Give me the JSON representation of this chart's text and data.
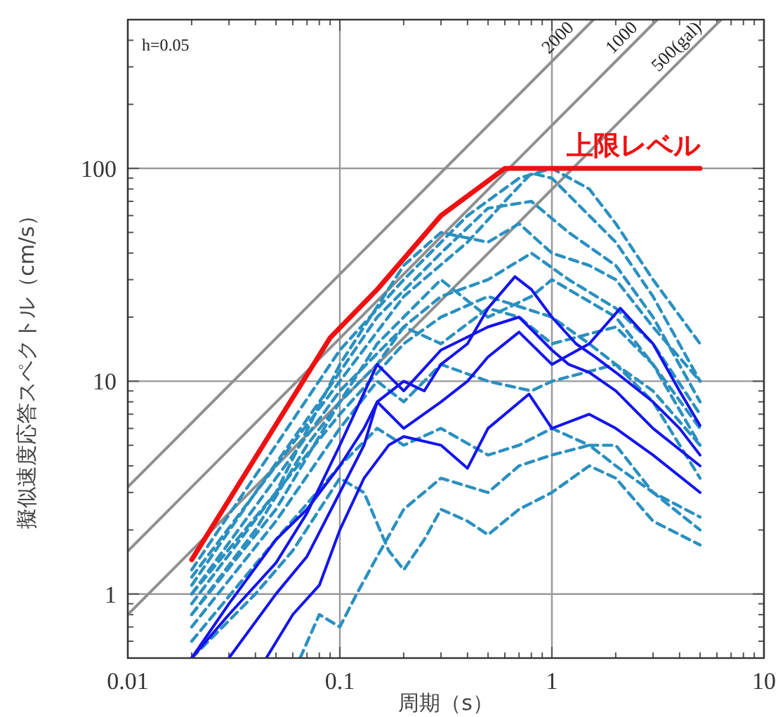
{
  "chart_data": {
    "type": "line",
    "xlabel": "周期（s）",
    "ylabel": "擬似速度応答スペクトル（cm/s）",
    "log": "xy",
    "xlim": [
      0.01,
      10
    ],
    "ylim": [
      0.5,
      500
    ],
    "xticks": [
      0.01,
      0.1,
      1,
      10
    ],
    "yticks": [
      1,
      10,
      100
    ],
    "grid": true,
    "marker": "none",
    "annotations": [
      "h=0.05"
    ],
    "series": [
      {
        "name": "2000",
        "color": "#909090",
        "x": [
          0.01,
          1.57
        ],
        "values": [
          3.18,
          500
        ]
      },
      {
        "name": "1000",
        "color": "#909090",
        "x": [
          0.01,
          3.14
        ],
        "values": [
          1.59,
          500
        ]
      },
      {
        "name": "500(gal)",
        "color": "#909090",
        "x": [
          0.01,
          6.28
        ],
        "values": [
          0.8,
          500
        ]
      },
      {
        "color": "#2a90c0",
        "line_style": "dashed",
        "x": [
          0.02,
          0.05,
          0.1,
          0.2,
          0.4,
          0.7,
          1,
          1.5,
          2,
          3,
          5
        ],
        "values": [
          1.3,
          5,
          14,
          30,
          60,
          90,
          100,
          80,
          55,
          30,
          15
        ]
      },
      {
        "color": "#2a90c0",
        "line_style": "dashed",
        "x": [
          0.02,
          0.05,
          0.1,
          0.2,
          0.4,
          0.6,
          0.8,
          1,
          1.5,
          2,
          3,
          5
        ],
        "values": [
          1.2,
          4,
          10,
          25,
          45,
          70,
          95,
          90,
          60,
          45,
          25,
          10
        ]
      },
      {
        "color": "#2a90c0",
        "line_style": "dashed",
        "x": [
          0.02,
          0.04,
          0.08,
          0.15,
          0.3,
          0.5,
          0.8,
          1.2,
          2,
          3,
          5
        ],
        "values": [
          1.1,
          3,
          8,
          20,
          40,
          65,
          70,
          50,
          35,
          20,
          8
        ]
      },
      {
        "color": "#2a90c0",
        "line_style": "dashed",
        "x": [
          0.02,
          0.05,
          0.1,
          0.2,
          0.3,
          0.5,
          0.8,
          1.2,
          2,
          3,
          5
        ],
        "values": [
          1,
          3.5,
          9,
          18,
          25,
          30,
          40,
          30,
          22,
          15,
          7
        ]
      },
      {
        "color": "#2a90c0",
        "line_style": "dashed",
        "x": [
          0.02,
          0.05,
          0.1,
          0.2,
          0.3,
          0.5,
          1,
          1.5,
          2,
          3,
          5
        ],
        "values": [
          0.9,
          3,
          7,
          15,
          20,
          25,
          20,
          15,
          12,
          9,
          5
        ]
      },
      {
        "color": "#2a90c0",
        "line_style": "dashed",
        "x": [
          0.02,
          0.04,
          0.07,
          0.1,
          0.15,
          0.2,
          0.3,
          0.5,
          0.7,
          1,
          2,
          3,
          5
        ],
        "values": [
          0.8,
          2,
          5,
          8,
          12,
          18,
          15,
          22,
          20,
          15,
          18,
          12,
          5
        ]
      },
      {
        "color": "#2a90c0",
        "line_style": "dashed",
        "x": [
          0.02,
          0.05,
          0.1,
          0.15,
          0.2,
          0.3,
          0.5,
          0.8,
          1,
          2,
          3,
          5
        ],
        "values": [
          0.7,
          2.2,
          6,
          10,
          8,
          12,
          10,
          9,
          10,
          12,
          8,
          3.5
        ]
      },
      {
        "color": "#2a90c0",
        "line_style": "dashed",
        "x": [
          0.02,
          0.05,
          0.1,
          0.15,
          0.2,
          0.3,
          0.5,
          0.7,
          1,
          1.5,
          2,
          3,
          5
        ],
        "values": [
          0.6,
          1.8,
          4,
          6,
          5,
          6,
          4.5,
          5,
          6,
          5,
          5,
          3,
          2
        ]
      },
      {
        "color": "#2a90c0",
        "line_style": "dashed",
        "x": [
          0.02,
          0.04,
          0.06,
          0.1,
          0.13,
          0.17,
          0.2,
          0.25,
          0.3,
          0.4,
          0.5,
          0.7,
          1,
          1.5,
          2,
          3,
          5
        ],
        "values": [
          0.5,
          1,
          1.6,
          3.5,
          3,
          1.6,
          1.3,
          1.8,
          2.5,
          2.2,
          1.9,
          2.5,
          3,
          4,
          3.5,
          2.2,
          1.7
        ]
      },
      {
        "color": "#2a90c0",
        "line_style": "dashed",
        "x": [
          0.065,
          0.08,
          0.1,
          0.12,
          0.15,
          0.2,
          0.3,
          0.5,
          0.7,
          1,
          1.5,
          2,
          3,
          5
        ],
        "values": [
          0.5,
          0.8,
          0.7,
          1,
          1.5,
          2.5,
          3.5,
          3,
          4,
          4.5,
          5,
          4,
          3,
          2.3
        ]
      },
      {
        "color": "#2a90c0",
        "line_style": "dashed",
        "x": [
          0.02,
          0.05,
          0.1,
          0.2,
          0.3,
          0.5,
          0.7,
          1,
          1.5,
          2,
          3,
          5
        ],
        "values": [
          1,
          3,
          12,
          35,
          50,
          45,
          55,
          40,
          35,
          30,
          18,
          10
        ]
      },
      {
        "color": "#2a90c0",
        "line_style": "dashed",
        "x": [
          0.02,
          0.05,
          0.1,
          0.15,
          0.3,
          0.5,
          0.8,
          1,
          2,
          3,
          5
        ],
        "values": [
          0.8,
          2.5,
          8,
          15,
          30,
          20,
          25,
          30,
          20,
          12,
          6
        ]
      },
      {
        "color": "#1414ee",
        "x": [
          0.02,
          0.03,
          0.05,
          0.07,
          0.1,
          0.13,
          0.15,
          0.2,
          0.25,
          0.3,
          0.4,
          0.5,
          0.67,
          0.8,
          1,
          1.3,
          1.6,
          2,
          3,
          4,
          5
        ],
        "values": [
          0.5,
          0.9,
          1.8,
          2.5,
          4,
          6,
          8,
          10,
          9,
          12,
          15,
          22,
          31,
          27,
          20,
          15,
          13,
          11,
          8,
          6,
          4.5
        ]
      },
      {
        "color": "#1414ee",
        "x": [
          0.03,
          0.05,
          0.07,
          0.1,
          0.13,
          0.15,
          0.2,
          0.3,
          0.4,
          0.5,
          0.7,
          1,
          1.5,
          2.1,
          3,
          4,
          5
        ],
        "values": [
          0.5,
          1,
          1.5,
          3,
          5,
          8,
          6,
          8,
          10,
          13,
          17,
          12,
          15,
          22,
          15,
          9,
          6.2
        ]
      },
      {
        "color": "#1414ee",
        "x": [
          0.045,
          0.06,
          0.08,
          0.1,
          0.13,
          0.17,
          0.2,
          0.3,
          0.4,
          0.5,
          0.78,
          1,
          1.5,
          2,
          3,
          5
        ],
        "values": [
          0.5,
          0.8,
          1.1,
          2,
          3.5,
          5,
          5.5,
          5,
          3.9,
          6,
          8.7,
          6,
          7,
          6,
          4.5,
          3
        ]
      },
      {
        "color": "#1414ee",
        "x": [
          0.02,
          0.03,
          0.05,
          0.07,
          0.1,
          0.15,
          0.2,
          0.3,
          0.5,
          0.7,
          1,
          1.2,
          1.5,
          2,
          3,
          5
        ],
        "values": [
          0.5,
          0.8,
          1.4,
          2.4,
          5,
          12,
          9,
          14,
          18,
          20,
          14,
          12,
          11,
          9,
          6,
          4
        ]
      },
      {
        "name": "上限レベル",
        "color": "#ee1111",
        "x": [
          0.02,
          0.09,
          0.15,
          0.3,
          0.6,
          5
        ],
        "values": [
          1.45,
          16,
          27,
          60,
          100,
          100
        ]
      }
    ]
  }
}
